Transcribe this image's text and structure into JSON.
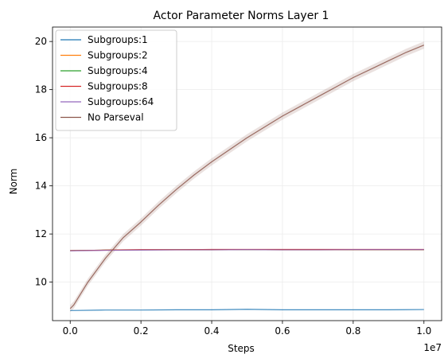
{
  "chart_data": {
    "type": "line",
    "title": "Actor Parameter Norms Layer 1",
    "xlabel": "Steps",
    "ylabel": "Norm",
    "x_offset_label": "1e7",
    "xlim": [
      -0.05,
      1.05
    ],
    "ylim": [
      8.4,
      20.6
    ],
    "x_ticks": [
      0.0,
      0.2,
      0.4,
      0.6,
      0.8,
      1.0
    ],
    "x_tick_labels": [
      "0.0",
      "0.2",
      "0.4",
      "0.6",
      "0.8",
      "1.0"
    ],
    "y_ticks": [
      10,
      12,
      14,
      16,
      18,
      20
    ],
    "y_tick_labels": [
      "10",
      "12",
      "14",
      "16",
      "18",
      "20"
    ],
    "grid": true,
    "legend_position": "top-left",
    "series": [
      {
        "name": "Subgroups:1",
        "color": "#1f77b4",
        "x": [
          0.0,
          0.1,
          0.2,
          0.3,
          0.4,
          0.5,
          0.6,
          0.7,
          0.8,
          0.9,
          1.0
        ],
        "y": [
          8.82,
          8.84,
          8.84,
          8.85,
          8.85,
          8.87,
          8.85,
          8.85,
          8.85,
          8.85,
          8.86
        ]
      },
      {
        "name": "Subgroups:2",
        "color": "#ff7f0e",
        "x": [
          0.0,
          0.1,
          0.2,
          0.3,
          0.4,
          0.5,
          0.6,
          0.7,
          0.8,
          0.9,
          1.0
        ],
        "y": [
          11.31,
          11.33,
          11.34,
          11.34,
          11.34,
          11.35,
          11.34,
          11.34,
          11.34,
          11.34,
          11.34
        ]
      },
      {
        "name": "Subgroups:4",
        "color": "#2ca02c",
        "x": [
          0.0,
          0.1,
          0.2,
          0.3,
          0.4,
          0.5,
          0.6,
          0.7,
          0.8,
          0.9,
          1.0
        ],
        "y": [
          11.31,
          11.33,
          11.34,
          11.35,
          11.35,
          11.35,
          11.35,
          11.35,
          11.35,
          11.35,
          11.35
        ]
      },
      {
        "name": "Subgroups:8",
        "color": "#d62728",
        "x": [
          0.0,
          0.1,
          0.2,
          0.3,
          0.4,
          0.5,
          0.6,
          0.7,
          0.8,
          0.9,
          1.0
        ],
        "y": [
          11.31,
          11.33,
          11.35,
          11.35,
          11.36,
          11.36,
          11.36,
          11.36,
          11.36,
          11.36,
          11.36
        ]
      },
      {
        "name": "Subgroups:64",
        "color": "#9467bd",
        "x": [
          0.0,
          0.1,
          0.2,
          0.3,
          0.4,
          0.5,
          0.6,
          0.7,
          0.8,
          0.9,
          1.0
        ],
        "y": [
          11.3,
          11.32,
          11.33,
          11.34,
          11.34,
          11.35,
          11.34,
          11.34,
          11.35,
          11.35,
          11.35
        ]
      },
      {
        "name": "No Parseval",
        "color": "#8c564b",
        "x": [
          0.0,
          0.01,
          0.05,
          0.1,
          0.15,
          0.2,
          0.25,
          0.3,
          0.35,
          0.4,
          0.45,
          0.5,
          0.55,
          0.6,
          0.65,
          0.7,
          0.75,
          0.8,
          0.85,
          0.9,
          0.95,
          1.0
        ],
        "y": [
          8.9,
          9.05,
          10.0,
          11.0,
          11.85,
          12.5,
          13.2,
          13.85,
          14.45,
          15.0,
          15.5,
          16.0,
          16.45,
          16.9,
          17.3,
          17.7,
          18.1,
          18.5,
          18.85,
          19.2,
          19.55,
          19.85
        ],
        "band": 0.15
      }
    ]
  }
}
